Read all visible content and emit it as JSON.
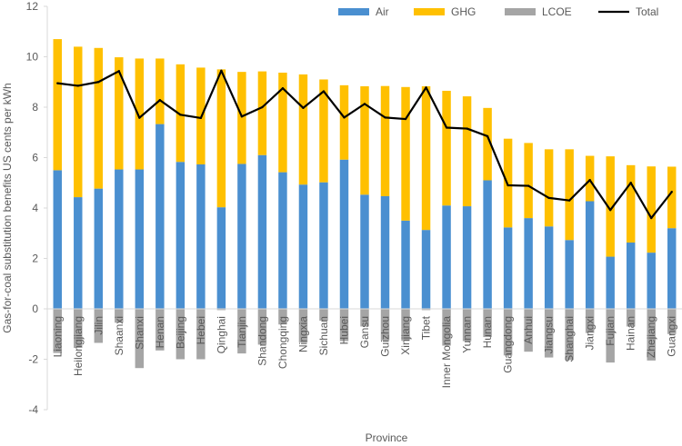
{
  "chart_data": {
    "type": "bar",
    "stacked": true,
    "xlabel": "Province",
    "ylabel": "Gas-for-coal substitution benefits US cents per kWh",
    "ylim": [
      -4,
      12
    ],
    "yticks": [
      -4,
      -2,
      0,
      2,
      4,
      6,
      8,
      10,
      12
    ],
    "grid": false,
    "legend_position": "top-right",
    "categories": [
      "Liaoning",
      "Heilongjiang",
      "Jilin",
      "Shaanxi",
      "Shanxi",
      "Henan",
      "Beijing",
      "Hebei",
      "Qinghai",
      "Tianjin",
      "Shandong",
      "Chongqing",
      "Ningxia",
      "Sichuan",
      "Hubei",
      "Gansu",
      "Guizhou",
      "Xinjiang",
      "Tibet",
      "Inner Mongolia",
      "Yunnan",
      "Hunan",
      "Guangdong",
      "Anhui",
      "Jiangsu",
      "Shanghai",
      "Jiangxi",
      "Fujian",
      "Hainan",
      "Zhejiang",
      "Guangxi"
    ],
    "series": [
      {
        "name": "Air",
        "kind": "bar",
        "color": "#4a8fd0",
        "values": [
          5.5,
          4.43,
          4.77,
          5.53,
          5.53,
          7.33,
          5.83,
          5.73,
          4.03,
          5.75,
          6.1,
          5.42,
          4.93,
          5.02,
          5.92,
          4.53,
          4.47,
          3.5,
          3.13,
          4.1,
          4.07,
          5.1,
          3.23,
          3.6,
          3.27,
          2.73,
          4.27,
          2.07,
          2.63,
          2.23,
          3.2
        ]
      },
      {
        "name": "GHG",
        "kind": "bar",
        "color": "#ffc000",
        "values": [
          5.2,
          5.97,
          5.58,
          4.45,
          4.4,
          2.6,
          3.87,
          3.84,
          5.47,
          3.65,
          3.32,
          3.95,
          4.37,
          4.08,
          2.95,
          4.3,
          4.37,
          5.3,
          5.7,
          4.55,
          4.36,
          2.87,
          3.52,
          2.98,
          3.06,
          3.6,
          1.8,
          3.98,
          3.07,
          3.42,
          2.44
        ]
      },
      {
        "name": "LCOE",
        "kind": "bar",
        "color": "#a5a5a5",
        "values": [
          -1.75,
          -1.55,
          -1.35,
          -0.55,
          -2.35,
          -1.65,
          -2.0,
          -2.0,
          -0.05,
          -1.77,
          -1.42,
          -0.62,
          -1.33,
          -0.47,
          -1.28,
          -0.7,
          -1.25,
          -1.27,
          -0.05,
          -1.46,
          -1.28,
          -1.12,
          -1.85,
          -1.7,
          -1.93,
          -2.03,
          -0.96,
          -2.13,
          -0.7,
          -2.05,
          -1.0
        ]
      },
      {
        "name": "Total",
        "kind": "line",
        "color": "#000000",
        "values": [
          8.95,
          8.85,
          9.0,
          9.43,
          7.58,
          8.28,
          7.7,
          7.57,
          9.45,
          7.63,
          8.0,
          8.75,
          7.97,
          8.63,
          7.59,
          8.13,
          7.59,
          7.53,
          8.78,
          7.19,
          7.15,
          6.85,
          4.9,
          4.88,
          4.4,
          4.3,
          5.11,
          3.92,
          5.0,
          3.6,
          4.64
        ]
      }
    ]
  }
}
